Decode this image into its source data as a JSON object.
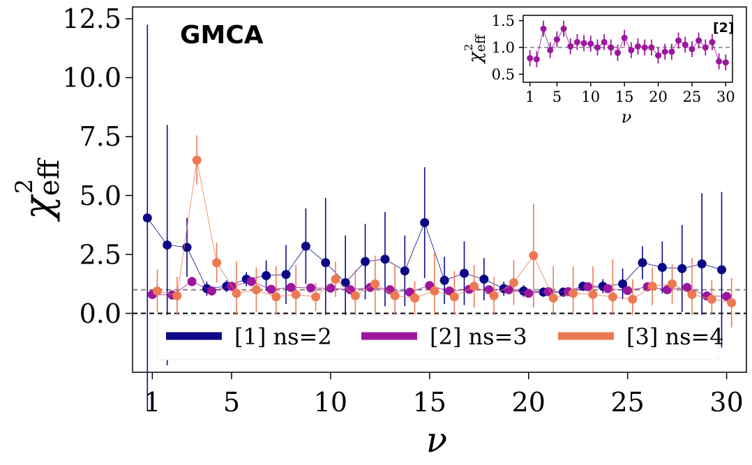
{
  "chart_data": [
    {
      "type": "scatter",
      "panel": "main",
      "title": "GMCA",
      "xlabel": "ν",
      "ylabel_main": "χ",
      "ylabel_sup": "2",
      "ylabel_sub": "eff",
      "xlim": [
        0,
        31
      ],
      "ylim": [
        -2.5,
        13
      ],
      "xticks": [
        1,
        5,
        10,
        15,
        20,
        25,
        30
      ],
      "xtick_labels": [
        "1",
        "5",
        "10",
        "15",
        "20",
        "25",
        "30"
      ],
      "yticks": [
        0,
        2.5,
        5,
        7.5,
        10,
        12.5
      ],
      "ytick_labels": [
        "0.0",
        "2.5",
        "5.0",
        "7.5",
        "10.0",
        "12.5"
      ],
      "reference_lines": [
        {
          "y": 0,
          "style": "dashed",
          "color": "#000000"
        },
        {
          "y": 1,
          "style": "dashed",
          "color": "#808080"
        }
      ],
      "legend_position": "lower-center",
      "series": [
        {
          "name": "[1] ns=2",
          "color": "#0d0887",
          "x_offset": -0.25,
          "x": [
            1,
            2,
            3,
            4,
            5,
            6,
            7,
            8,
            9,
            10,
            11,
            12,
            13,
            14,
            15,
            16,
            17,
            18,
            19,
            20,
            21,
            22,
            23,
            24,
            25,
            26,
            27,
            28,
            29,
            30
          ],
          "y": [
            4.05,
            2.9,
            2.8,
            1.05,
            1.15,
            1.45,
            1.6,
            1.65,
            2.85,
            2.15,
            1.3,
            2.2,
            2.3,
            1.8,
            3.85,
            1.4,
            1.7,
            1.45,
            1.05,
            0.95,
            0.9,
            0.9,
            1.15,
            1.15,
            1.25,
            2.15,
            1.95,
            1.9,
            2.1,
            1.85
          ],
          "err": [
            8.2,
            5.1,
            1.25,
            0.3,
            0.25,
            0.3,
            0.65,
            1.25,
            1.6,
            2.75,
            2.0,
            1.6,
            2.0,
            1.5,
            2.35,
            1.0,
            1.35,
            0.9,
            0.3,
            0.25,
            0.2,
            0.2,
            0.2,
            0.3,
            0.65,
            0.7,
            1.1,
            1.85,
            3.0,
            3.3
          ]
        },
        {
          "name": "[2] ns=3",
          "color": "#9c179e",
          "x_offset": 0,
          "x": [
            1,
            2,
            3,
            4,
            5,
            6,
            7,
            8,
            9,
            10,
            11,
            12,
            13,
            14,
            15,
            16,
            17,
            18,
            19,
            20,
            21,
            22,
            23,
            24,
            25,
            26,
            27,
            28,
            29,
            30
          ],
          "y": [
            0.8,
            0.78,
            1.35,
            0.95,
            1.15,
            1.35,
            1.02,
            1.1,
            1.08,
            1.07,
            1.0,
            1.1,
            1.0,
            0.9,
            1.18,
            0.95,
            1.02,
            1.0,
            1.0,
            0.85,
            0.92,
            0.92,
            1.13,
            1.05,
            0.97,
            1.13,
            1.0,
            1.1,
            0.74,
            0.72
          ],
          "err": [
            0.2,
            0.2,
            0.2,
            0.2,
            0.15,
            0.15,
            0.15,
            0.15,
            0.15,
            0.15,
            0.15,
            0.15,
            0.15,
            0.15,
            0.15,
            0.15,
            0.15,
            0.15,
            0.15,
            0.15,
            0.15,
            0.15,
            0.15,
            0.15,
            0.15,
            0.15,
            0.15,
            0.15,
            0.18,
            0.18
          ]
        },
        {
          "name": "[3] ns=4",
          "color": "#ed7953",
          "x_offset": 0.25,
          "x": [
            1,
            2,
            3,
            4,
            5,
            6,
            7,
            8,
            9,
            10,
            11,
            12,
            13,
            14,
            15,
            16,
            17,
            18,
            19,
            20,
            21,
            22,
            23,
            24,
            25,
            26,
            27,
            28,
            29,
            30
          ],
          "y": [
            0.95,
            0.75,
            6.5,
            2.15,
            0.85,
            1.0,
            0.7,
            0.8,
            0.7,
            1.45,
            0.75,
            1.25,
            0.75,
            0.65,
            0.95,
            0.7,
            1.15,
            0.75,
            1.3,
            2.45,
            0.65,
            0.85,
            0.8,
            0.7,
            0.6,
            1.15,
            1.25,
            0.8,
            0.6,
            0.45
          ],
          "err": [
            0.9,
            0.8,
            1.05,
            0.85,
            1.35,
            0.95,
            1.3,
            1.25,
            0.6,
            0.75,
            1.1,
            1.2,
            1.3,
            0.7,
            1.6,
            1.1,
            0.9,
            0.8,
            0.95,
            2.2,
            1.35,
            1.15,
            1.2,
            1.6,
            0.85,
            0.8,
            0.85,
            1.55,
            0.8,
            1.05
          ]
        }
      ]
    },
    {
      "type": "scatter",
      "panel": "inset",
      "tag": "[2]",
      "xlabel": "ν",
      "ylabel_main": "χ",
      "ylabel_sup": "2",
      "ylabel_sub": "eff",
      "xlim": [
        0,
        31
      ],
      "ylim": [
        0.35,
        1.6
      ],
      "xticks": [
        1,
        5,
        10,
        15,
        20,
        25,
        30
      ],
      "xtick_labels": [
        "1",
        "5",
        "10",
        "15",
        "20",
        "25",
        "30"
      ],
      "yticks": [
        0.5,
        1.0,
        1.5
      ],
      "ytick_labels": [
        "0.5",
        "1.0",
        "1.5"
      ],
      "reference_lines": [
        {
          "y": 1,
          "style": "dashed",
          "color": "#808080"
        }
      ],
      "series": [
        {
          "name": "[2]",
          "color": "#9c179e",
          "x": [
            1,
            2,
            3,
            4,
            5,
            6,
            7,
            8,
            9,
            10,
            11,
            12,
            13,
            14,
            15,
            16,
            17,
            18,
            19,
            20,
            21,
            22,
            23,
            24,
            25,
            26,
            27,
            28,
            29,
            30
          ],
          "y": [
            0.8,
            0.78,
            1.35,
            0.95,
            1.15,
            1.35,
            1.02,
            1.1,
            1.08,
            1.07,
            1.0,
            1.1,
            1.0,
            0.9,
            1.18,
            0.95,
            1.02,
            1.0,
            1.0,
            0.85,
            0.92,
            0.92,
            1.13,
            1.05,
            0.97,
            1.13,
            1.0,
            1.1,
            0.74,
            0.72
          ],
          "err": [
            0.15,
            0.15,
            0.15,
            0.15,
            0.15,
            0.15,
            0.15,
            0.15,
            0.15,
            0.15,
            0.15,
            0.15,
            0.15,
            0.15,
            0.15,
            0.15,
            0.15,
            0.15,
            0.15,
            0.15,
            0.15,
            0.15,
            0.15,
            0.15,
            0.15,
            0.15,
            0.15,
            0.15,
            0.15,
            0.15
          ]
        }
      ]
    }
  ]
}
